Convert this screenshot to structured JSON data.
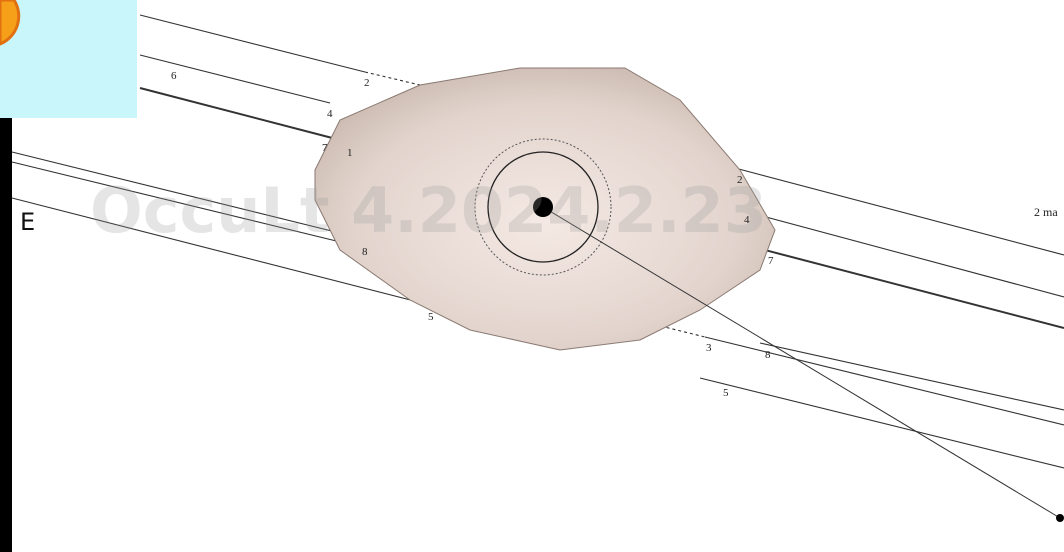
{
  "labels": {
    "east": "E",
    "watermark": "OccuLt 4.2024.2.23",
    "scale": "2 ma"
  },
  "chord_labels": [
    "2",
    "6",
    "4",
    "7",
    "1",
    "2",
    "4",
    "8",
    "7",
    "5",
    "3",
    "8",
    "5"
  ]
}
